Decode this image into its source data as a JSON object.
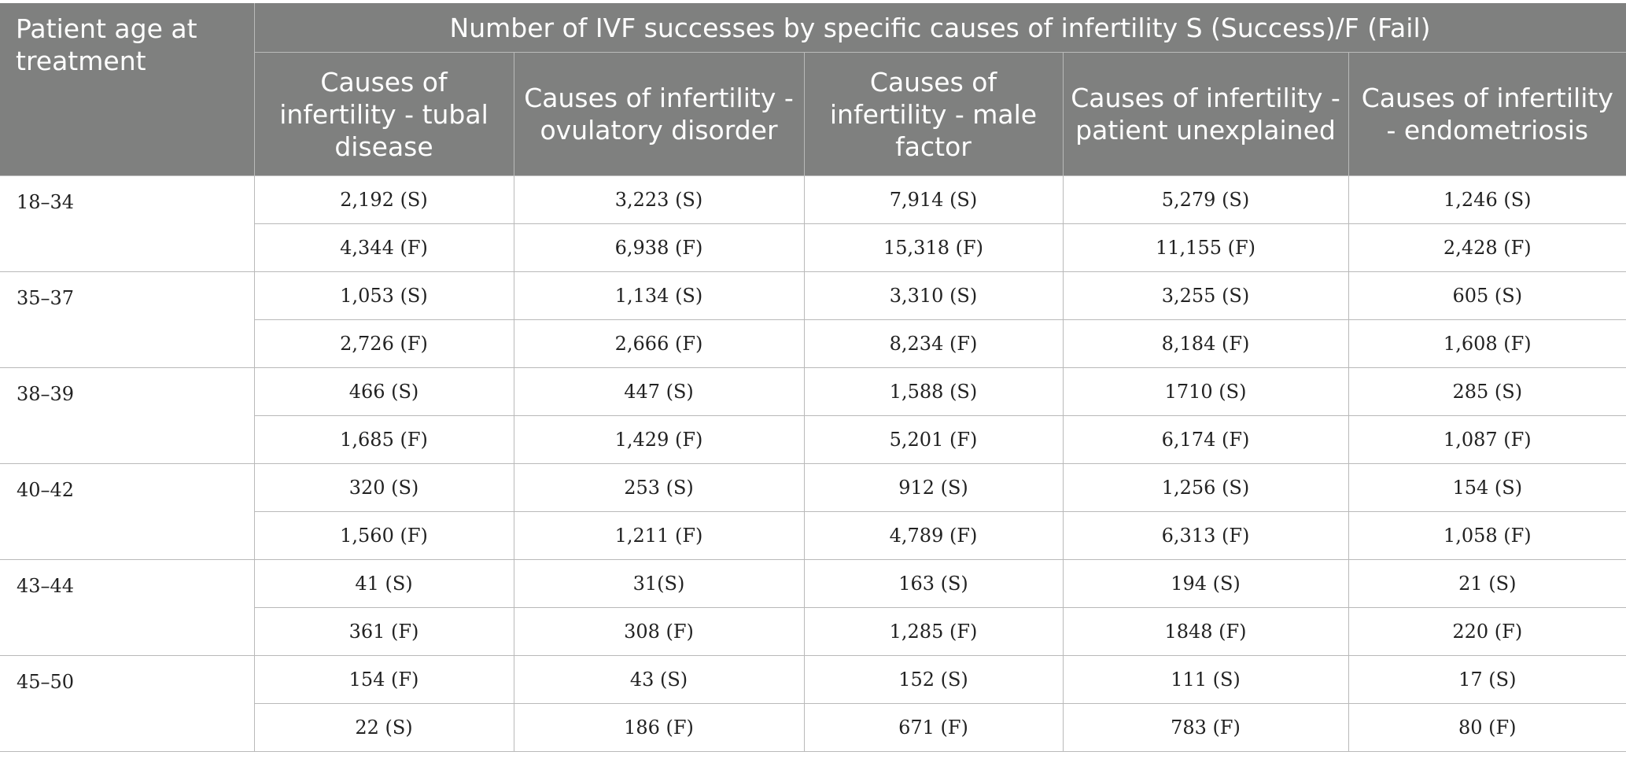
{
  "table": {
    "age_header": "Patient age at treatment",
    "group_header": "Number of IVF successes by specific causes of infertility S (Success)/F (Fail)",
    "columns": [
      "Causes of infertility - tubal disease",
      "Causes of infertility - ovulatory disorder",
      "Causes of infertility - male factor",
      "Causes of infertility - patient unexplained",
      "Causes of infertility - endometriosis"
    ],
    "groups": [
      {
        "age": "18–34",
        "rows": [
          [
            "2,192 (S)",
            "3,223 (S)",
            "7,914 (S)",
            "5,279 (S)",
            "1,246 (S)"
          ],
          [
            "4,344 (F)",
            "6,938 (F)",
            "15,318 (F)",
            "11,155 (F)",
            "2,428 (F)"
          ]
        ]
      },
      {
        "age": "35–37",
        "rows": [
          [
            "1,053 (S)",
            "1,134 (S)",
            "3,310 (S)",
            "3,255 (S)",
            "605 (S)"
          ],
          [
            "2,726 (F)",
            "2,666 (F)",
            "8,234 (F)",
            "8,184 (F)",
            "1,608 (F)"
          ]
        ]
      },
      {
        "age": "38–39",
        "rows": [
          [
            "466 (S)",
            "447 (S)",
            "1,588 (S)",
            "1710 (S)",
            "285 (S)"
          ],
          [
            "1,685 (F)",
            "1,429 (F)",
            "5,201 (F)",
            "6,174 (F)",
            "1,087 (F)"
          ]
        ]
      },
      {
        "age": "40–42",
        "rows": [
          [
            "320 (S)",
            "253 (S)",
            "912 (S)",
            "1,256 (S)",
            "154 (S)"
          ],
          [
            "1,560 (F)",
            "1,211 (F)",
            "4,789 (F)",
            "6,313 (F)",
            "1,058 (F)"
          ]
        ]
      },
      {
        "age": "43–44",
        "rows": [
          [
            "41 (S)",
            "31(S)",
            "163 (S)",
            "194 (S)",
            "21 (S)"
          ],
          [
            "361 (F)",
            "308 (F)",
            "1,285 (F)",
            "1848 (F)",
            "220 (F)"
          ]
        ]
      },
      {
        "age": "45–50",
        "rows": [
          [
            "154 (F)",
            "43 (S)",
            "152 (S)",
            "111 (S)",
            "17 (S)"
          ],
          [
            "22 (S)",
            "186 (F)",
            "671 (F)",
            "783 (F)",
            "80 (F)"
          ]
        ]
      }
    ]
  }
}
